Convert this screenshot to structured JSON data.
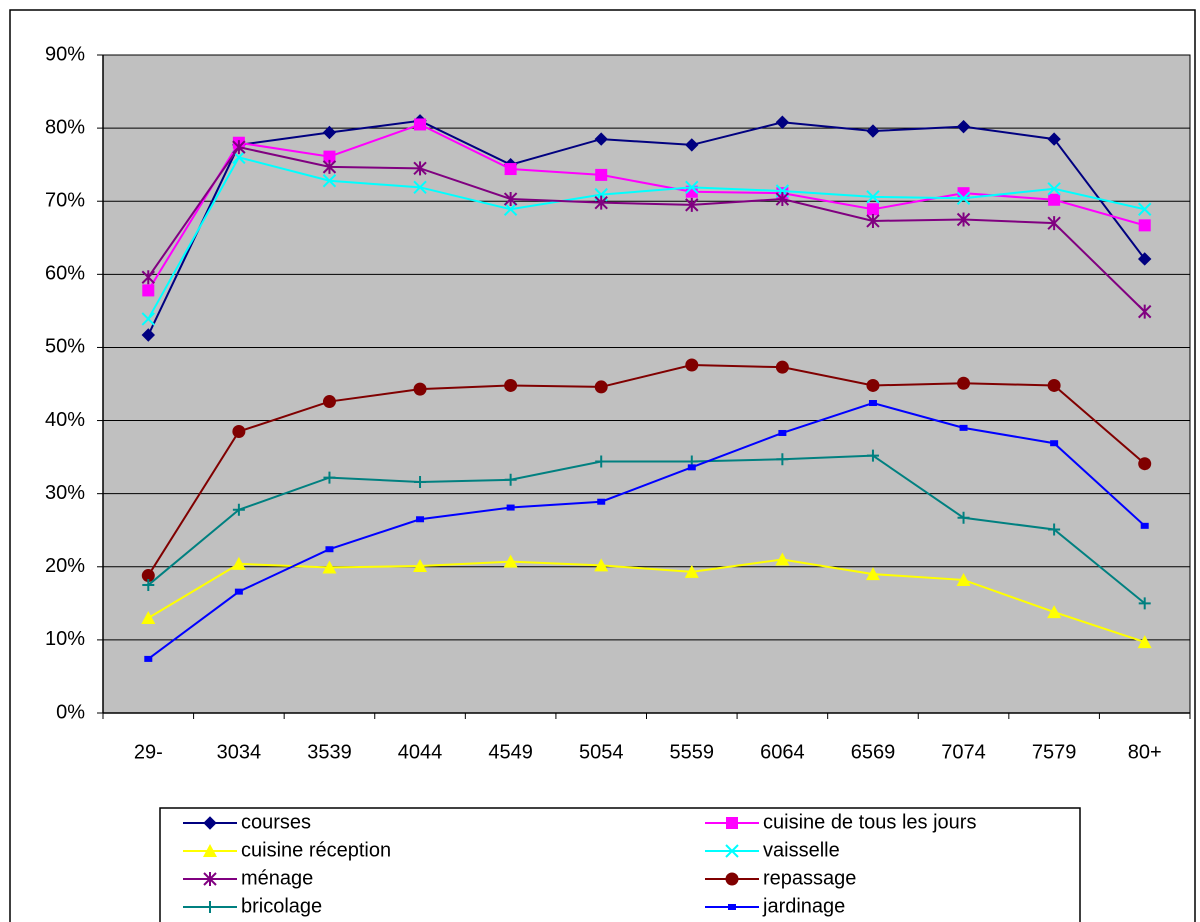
{
  "chart_data": {
    "type": "line",
    "categories": [
      "29-",
      "3034",
      "3539",
      "4044",
      "4549",
      "5054",
      "5559",
      "6064",
      "6569",
      "7074",
      "7579",
      "80+"
    ],
    "series": [
      {
        "name": "courses",
        "color": "#000080",
        "marker": "diamond",
        "values": [
          51.7,
          77.7,
          79.4,
          81.0,
          75.0,
          78.5,
          77.7,
          80.8,
          79.6,
          80.2,
          78.5,
          62.1
        ]
      },
      {
        "name": "cuisine de tous les jours",
        "color": "#ff00ff",
        "marker": "square",
        "values": [
          57.8,
          78.0,
          76.1,
          80.5,
          74.4,
          73.6,
          71.3,
          71.1,
          68.9,
          71.1,
          70.2,
          66.7
        ]
      },
      {
        "name": "cuisine réception",
        "color": "#ffff00",
        "marker": "triangle",
        "values": [
          13.0,
          20.4,
          19.9,
          20.1,
          20.7,
          20.2,
          19.3,
          21.0,
          19.0,
          18.2,
          13.8,
          9.7
        ]
      },
      {
        "name": "vaisselle",
        "color": "#00ffff",
        "marker": "x",
        "values": [
          53.9,
          76.0,
          72.8,
          71.9,
          68.9,
          70.9,
          71.9,
          71.4,
          70.6,
          70.4,
          71.7,
          68.9
        ]
      },
      {
        "name": "ménage",
        "color": "#800080",
        "marker": "star",
        "values": [
          59.6,
          77.4,
          74.7,
          74.5,
          70.3,
          69.8,
          69.5,
          70.3,
          67.3,
          67.5,
          67.0,
          54.9
        ]
      },
      {
        "name": "repassage",
        "color": "#800000",
        "marker": "circle",
        "values": [
          18.8,
          38.5,
          42.6,
          44.3,
          44.8,
          44.6,
          47.6,
          47.3,
          44.8,
          45.1,
          44.8,
          34.1
        ]
      },
      {
        "name": "bricolage",
        "color": "#008080",
        "marker": "plus",
        "values": [
          17.5,
          27.8,
          32.2,
          31.6,
          31.9,
          34.4,
          34.4,
          34.7,
          35.2,
          26.7,
          25.1,
          15.0
        ]
      },
      {
        "name": "jardinage",
        "color": "#0000ff",
        "marker": "rect",
        "values": [
          7.4,
          16.6,
          22.4,
          26.5,
          28.1,
          28.9,
          33.6,
          38.3,
          42.4,
          39.0,
          36.9,
          25.6
        ]
      }
    ],
    "ylim": [
      0,
      90
    ],
    "yticks": [
      {
        "value": 0,
        "label": "0%"
      },
      {
        "value": 10,
        "label": "10%"
      },
      {
        "value": 20,
        "label": "20%"
      },
      {
        "value": 30,
        "label": "30%"
      },
      {
        "value": 40,
        "label": "40%"
      },
      {
        "value": 50,
        "label": "50%"
      },
      {
        "value": 60,
        "label": "60%"
      },
      {
        "value": 70,
        "label": "70%"
      },
      {
        "value": 80,
        "label": "80%"
      },
      {
        "value": 90,
        "label": "90%"
      }
    ],
    "grid": true,
    "plot_background": "#c0c0c0",
    "legend": "bottom"
  }
}
